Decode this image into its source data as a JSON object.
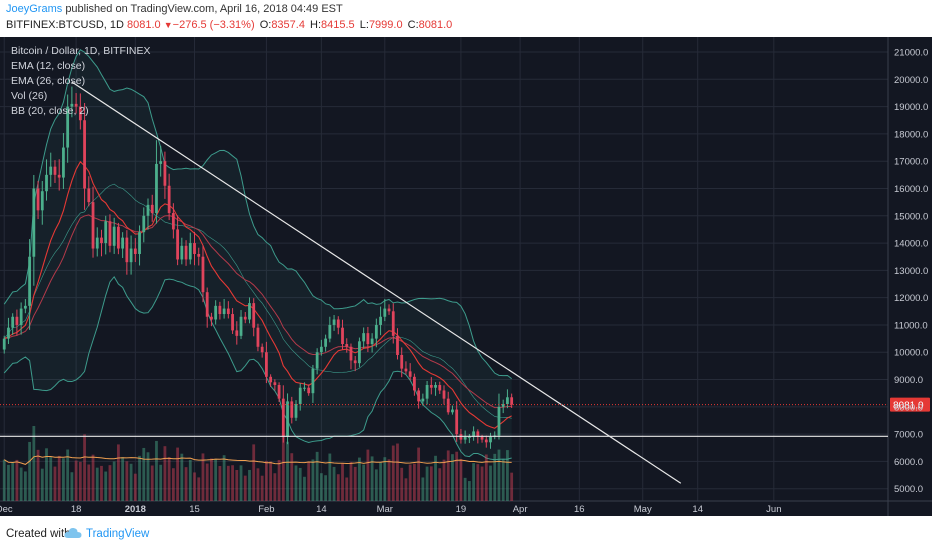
{
  "header": {
    "author": "JoeyGrams",
    "published": "published on TradingView.com, April 16, 2018 04:49 EST",
    "symbol": "BITFINEX:BTCUSD, 1D",
    "last": "8081.0",
    "change": "−276.5 (−3.31%)",
    "open_label": "O:",
    "open": "8357.4",
    "high_label": "H:",
    "high": "8415.5",
    "low_label": "L:",
    "low": "7999.0",
    "close_label": "C:",
    "close": "8081.0"
  },
  "legend": {
    "title": "Bitcoin / Dollar, 1D, BITFINEX",
    "items": [
      "EMA (12, close)",
      "EMA (26, close)",
      "Vol (26)",
      "BB (20, close, 2)"
    ]
  },
  "footer": {
    "created_with": "Created with",
    "brand": "TradingView"
  },
  "colors": {
    "background": "#131722",
    "grid": "#262b38",
    "up": "#4caf8c",
    "down": "#e0445c",
    "ema12": "#e53935",
    "ema26": "#b33a4a",
    "bollinger": "#3d9b8c",
    "volume_ma": "#f0a050",
    "trendline": "#e8e8e8",
    "price_label": "#e53935"
  },
  "chart_data": {
    "type": "candlestick",
    "title": "Bitcoin / Dollar, 1D, BITFINEX",
    "last_price_label": "8081.0",
    "y_ticks": [
      5000,
      6000,
      7000,
      8000,
      9000,
      10000,
      11000,
      12000,
      13000,
      14000,
      15000,
      16000,
      17000,
      18000,
      19000,
      20000,
      21000
    ],
    "y_tick_labels": [
      "5000.0",
      "6000.0",
      "7000.0",
      "8000.0",
      "9000.0",
      "10000.0",
      "11000.0",
      "12000.0",
      "13000.0",
      "14000.0",
      "15000.0",
      "16000.0",
      "17000.0",
      "18000.0",
      "19000.0",
      "20000.0",
      "21000.0"
    ],
    "ylim": [
      4550,
      21550
    ],
    "x_ticks": [
      {
        "date": "2017-12-01",
        "label": "Dec"
      },
      {
        "date": "2017-12-18",
        "label": "18"
      },
      {
        "date": "2018-01-01",
        "label": "2018"
      },
      {
        "date": "2018-01-15",
        "label": "15"
      },
      {
        "date": "2018-02-01",
        "label": "Feb"
      },
      {
        "date": "2018-02-14",
        "label": "14"
      },
      {
        "date": "2018-03-01",
        "label": "Mar"
      },
      {
        "date": "2018-03-19",
        "label": "19"
      },
      {
        "date": "2018-04-02",
        "label": "Apr"
      },
      {
        "date": "2018-04-16",
        "label": "16"
      },
      {
        "date": "2018-05-01",
        "label": "May"
      },
      {
        "date": "2018-05-14",
        "label": "14"
      },
      {
        "date": "2018-06-01",
        "label": "Jun"
      }
    ],
    "x_range": [
      "2017-11-30",
      "2018-06-28"
    ],
    "first_candle_date": "2017-12-01",
    "closes": [
      10500,
      10900,
      11300,
      11000,
      11600,
      11700,
      13500,
      16000,
      15200,
      15900,
      16500,
      16800,
      16500,
      16400,
      17500,
      19000,
      19100,
      19000,
      18500,
      16000,
      15500,
      13800,
      14200,
      14000,
      14800,
      13900,
      14600,
      13800,
      14200,
      13300,
      13800,
      13600,
      14400,
      15000,
      15400,
      15100,
      16900,
      17000,
      16100,
      15100,
      14500,
      13400,
      13900,
      13400,
      14000,
      13600,
      13500,
      12200,
      11300,
      11200,
      11700,
      11400,
      11600,
      11400,
      10800,
      10600,
      11300,
      11200,
      11800,
      10900,
      10200,
      10000,
      9100,
      8900,
      8800,
      8300,
      6900,
      8200,
      7600,
      8100,
      8700,
      8700,
      8500,
      9400,
      10000,
      10200,
      10500,
      11000,
      11200,
      10900,
      10300,
      10200,
      9700,
      9600,
      10400,
      10700,
      10300,
      10500,
      11000,
      11300,
      11600,
      11500,
      10600,
      9900,
      9400,
      9300,
      9100,
      8600,
      8200,
      8300,
      8800,
      8700,
      8800,
      8600,
      8300,
      7800,
      7900,
      7000,
      6800,
      6900,
      6900,
      7100,
      6900,
      6800,
      6700,
      6900,
      6950,
      8000,
      8100,
      8350,
      8081
    ],
    "overlays": {
      "ema12": "EMA (12, close)",
      "ema26": "EMA (26, close)",
      "bollinger": "BB (20, close, 2)",
      "volume": "Vol (26)"
    },
    "trendlines": [
      {
        "from": {
          "date": "2017-12-17",
          "price": 19900
        },
        "to": {
          "date": "2018-05-10",
          "price": 5200
        }
      },
      {
        "from": {
          "date": "2017-11-30",
          "price": 6920
        },
        "to": {
          "date": "2018-06-28",
          "price": 6920
        }
      }
    ],
    "grid": true,
    "legend_position": "top-left"
  }
}
